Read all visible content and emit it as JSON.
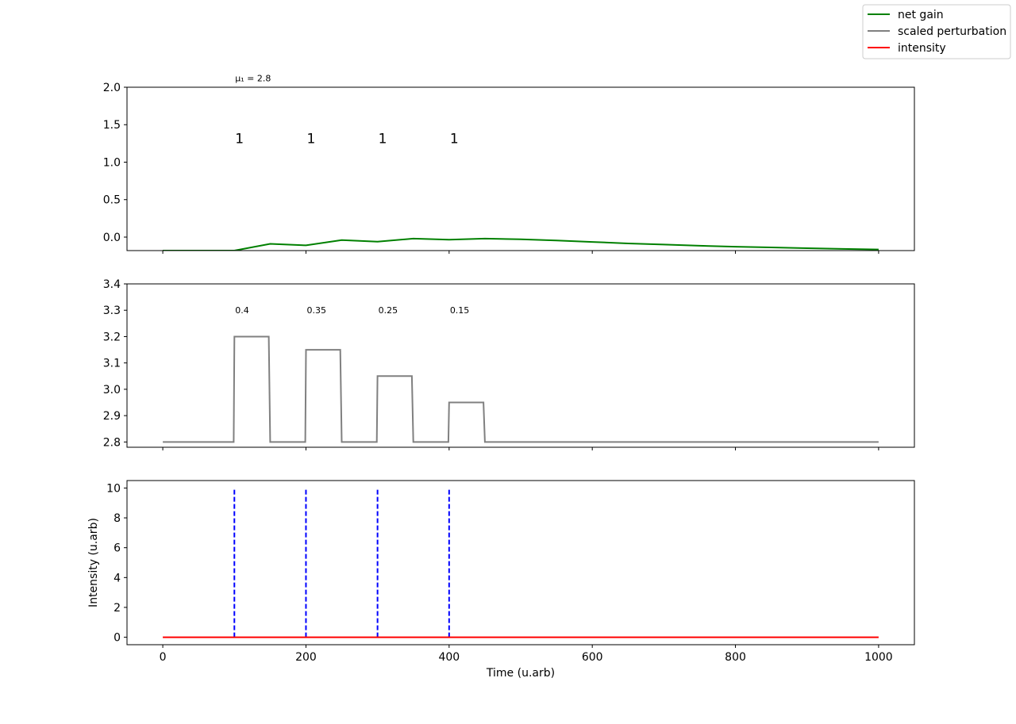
{
  "legend": {
    "position": "top-right",
    "entries": [
      {
        "label": "net gain",
        "color": "#008000"
      },
      {
        "label": "scaled perturbation",
        "color": "#808080"
      },
      {
        "label": "intensity",
        "color": "#ff0000"
      }
    ]
  },
  "chart_data": [
    {
      "type": "line",
      "title": "",
      "xlabel": "",
      "ylabel": "",
      "xlim": [
        -50,
        1050
      ],
      "ylim": [
        -0.18,
        2.0
      ],
      "yticks": [
        0.0,
        0.5,
        1.0,
        1.5,
        2.0
      ],
      "ytick_labels": [
        "0.0",
        "0.5",
        "1.0",
        "1.5",
        "2.0"
      ],
      "xticks": [
        0,
        200,
        400,
        600,
        800,
        1000
      ],
      "show_xtick_labels": false,
      "grid": false,
      "series": [
        {
          "name": "net gain",
          "color": "#008000",
          "x": [
            0,
            100,
            150,
            200,
            250,
            300,
            350,
            400,
            450,
            500,
            550,
            600,
            650,
            700,
            750,
            800,
            850,
            900,
            950,
            1000
          ],
          "y": [
            -0.18,
            -0.18,
            -0.09,
            -0.11,
            -0.04,
            -0.06,
            -0.02,
            -0.035,
            -0.02,
            -0.03,
            -0.045,
            -0.065,
            -0.085,
            -0.1,
            -0.115,
            -0.128,
            -0.138,
            -0.148,
            -0.158,
            -0.165
          ]
        }
      ],
      "annotations": [
        {
          "text": "μ₁ = 2.8",
          "x": 100,
          "y": 2.12,
          "size": "small"
        },
        {
          "text": "1",
          "x": 100,
          "y": 1.33,
          "size": "large"
        },
        {
          "text": "1",
          "x": 200,
          "y": 1.33,
          "size": "large"
        },
        {
          "text": "1",
          "x": 300,
          "y": 1.33,
          "size": "large"
        },
        {
          "text": "1",
          "x": 400,
          "y": 1.33,
          "size": "large"
        }
      ]
    },
    {
      "type": "line",
      "title": "",
      "xlabel": "",
      "ylabel": "",
      "xlim": [
        -50,
        1050
      ],
      "ylim": [
        2.78,
        3.4
      ],
      "yticks": [
        2.8,
        2.9,
        3.0,
        3.1,
        3.2,
        3.3,
        3.4
      ],
      "ytick_labels": [
        "2.8",
        "2.9",
        "3.0",
        "3.1",
        "3.2",
        "3.3",
        "3.4"
      ],
      "xticks": [
        0,
        200,
        400,
        600,
        800,
        1000
      ],
      "show_xtick_labels": false,
      "grid": false,
      "series": [
        {
          "name": "scaled perturbation",
          "color": "#808080",
          "x": [
            0,
            99,
            100,
            148,
            150,
            199,
            200,
            248,
            250,
            299,
            300,
            348,
            350,
            399,
            400,
            448,
            450,
            1000
          ],
          "y": [
            2.8,
            2.8,
            3.2,
            3.2,
            2.8,
            2.8,
            3.15,
            3.15,
            2.8,
            2.8,
            3.05,
            3.05,
            2.8,
            2.8,
            2.95,
            2.95,
            2.8,
            2.8
          ]
        }
      ],
      "annotations": [
        {
          "text": "0.4",
          "x": 100,
          "y": 3.3,
          "size": "small"
        },
        {
          "text": "0.35",
          "x": 200,
          "y": 3.3,
          "size": "small"
        },
        {
          "text": "0.25",
          "x": 300,
          "y": 3.3,
          "size": "small"
        },
        {
          "text": "0.15",
          "x": 400,
          "y": 3.3,
          "size": "small"
        }
      ]
    },
    {
      "type": "line",
      "title": "",
      "xlabel": "Time (u.arb)",
      "ylabel": "Intensity (u.arb)",
      "xlim": [
        -50,
        1050
      ],
      "ylim": [
        -0.5,
        10.5
      ],
      "yticks": [
        0,
        2,
        4,
        6,
        8,
        10
      ],
      "ytick_labels": [
        "0",
        "2",
        "4",
        "6",
        "8",
        "10"
      ],
      "xticks": [
        0,
        200,
        400,
        600,
        800,
        1000
      ],
      "xtick_labels": [
        "0",
        "200",
        "400",
        "600",
        "800",
        "1000"
      ],
      "show_xtick_labels": true,
      "grid": false,
      "series": [
        {
          "name": "intensity",
          "color": "#ff0000",
          "x": [
            0,
            1000
          ],
          "y": [
            0,
            0
          ]
        }
      ],
      "vlines": {
        "color": "#0000ff",
        "style": "dashed",
        "x": [
          100,
          200,
          300,
          400
        ],
        "ymin": 0,
        "ymax": 10
      }
    }
  ]
}
